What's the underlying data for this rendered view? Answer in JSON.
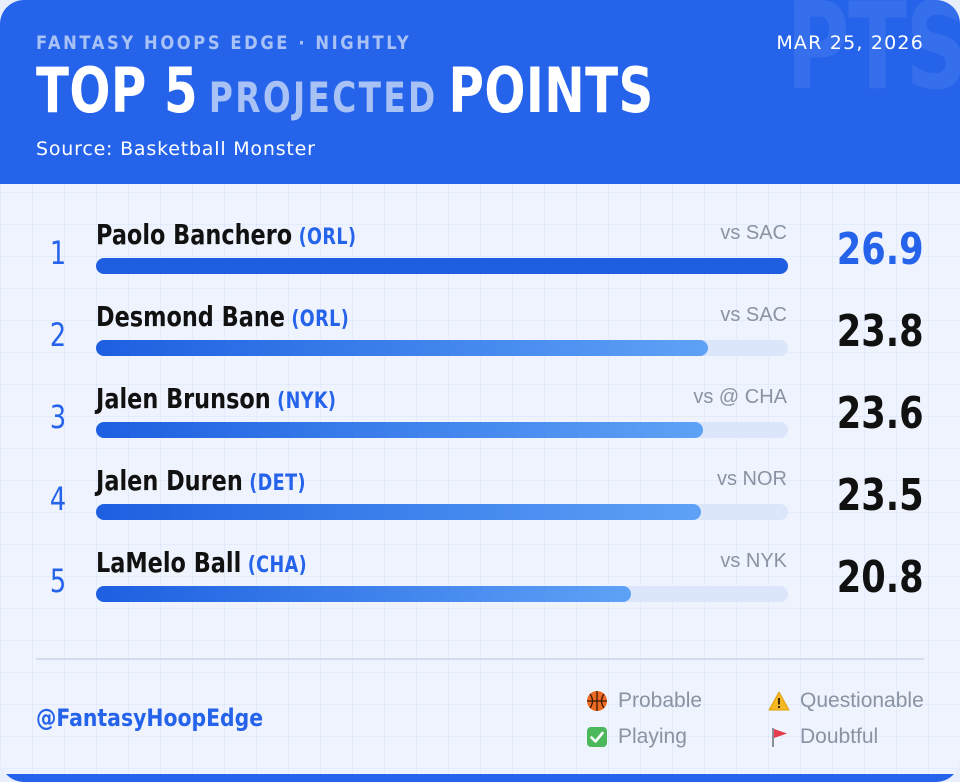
{
  "header": {
    "kicker": "FANTASY HOOPS EDGE · NIGHTLY",
    "date": "MAR 25, 2026",
    "title_part1": "TOP 5",
    "title_part2": "PROJECTED",
    "title_part3": "POINTS",
    "source": "Source: Basketball Monster",
    "watermark": "PTS"
  },
  "chart_data": {
    "type": "bar",
    "categories": [
      "Paolo Banchero",
      "Desmond Bane",
      "Jalen Brunson",
      "Jalen Duren",
      "LaMelo Ball"
    ],
    "values": [
      26.9,
      23.8,
      23.6,
      23.5,
      20.8
    ],
    "xlim": [
      0,
      26.9
    ],
    "grid": false,
    "legend_placement": "bottom-right"
  },
  "rows": [
    {
      "rank": "1",
      "name": "Paolo Banchero",
      "team": "(ORL)",
      "opponent": "vs SAC",
      "value": "26.9"
    },
    {
      "rank": "2",
      "name": "Desmond Bane",
      "team": "(ORL)",
      "opponent": "vs SAC",
      "value": "23.8"
    },
    {
      "rank": "3",
      "name": "Jalen Brunson",
      "team": "(NYK)",
      "opponent": "vs @ CHA",
      "value": "23.6"
    },
    {
      "rank": "4",
      "name": "Jalen Duren",
      "team": "(DET)",
      "opponent": "vs NOR",
      "value": "23.5"
    },
    {
      "rank": "5",
      "name": "LaMelo Ball",
      "team": "(CHA)",
      "opponent": "vs NYK",
      "value": "20.8"
    }
  ],
  "footer": {
    "handle": "@FantasyHoopEdge",
    "legend": [
      {
        "label": "Probable",
        "icon": "basketball-icon"
      },
      {
        "label": "Questionable",
        "icon": "warning-icon"
      },
      {
        "label": "Playing",
        "icon": "check-icon"
      },
      {
        "label": "Doubtful",
        "icon": "red-flag-icon"
      }
    ]
  },
  "colors": {
    "accent": "#2563eb",
    "bar_start": "#1d5fe0",
    "bar_end": "#5ea2f7",
    "track": "#dbe6fb",
    "muted_text": "#8b93a3"
  }
}
